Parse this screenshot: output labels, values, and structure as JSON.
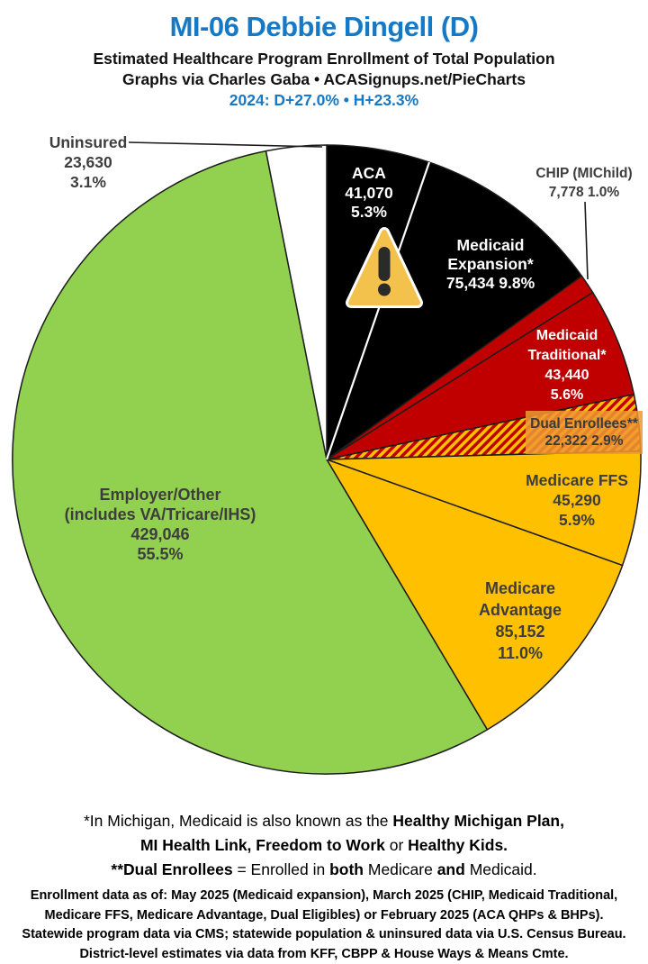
{
  "header": {
    "title": "MI-06 Debbie Dingell (D)",
    "subtitle1": "Estimated Healthcare Program Enrollment of Total Population",
    "subtitle2": "Graphs via Charles Gaba   •   ACASignups.net/PieCharts",
    "partisan_lean": "2024: D+27.0%  •  H+23.3%",
    "accent_blue": "#1679C5"
  },
  "chart_data": {
    "type": "pie",
    "title": "Estimated Healthcare Program Enrollment of Total Population",
    "units": "people",
    "start_angle_deg": 0,
    "direction": "clockwise",
    "hatch": {
      "bg": "#FFC000",
      "stripe": "#C00000"
    },
    "slices": [
      {
        "id": "aca",
        "label": "ACA",
        "value": 41070,
        "pct": 5.3,
        "fill": "#000000"
      },
      {
        "id": "medicaid-expansion",
        "label": "Medicaid Expansion*",
        "value": 75434,
        "pct": 9.8,
        "fill": "#000000"
      },
      {
        "id": "chip",
        "label": "CHIP (MIChild)",
        "value": 7778,
        "pct": 1.0,
        "fill": "#C00000"
      },
      {
        "id": "medicaid-traditional",
        "label": "Medicaid Traditional*",
        "value": 43440,
        "pct": 5.6,
        "fill": "#C00000"
      },
      {
        "id": "dual-enrollees",
        "label": "Dual Enrollees**",
        "value": 22322,
        "pct": 2.9,
        "fill": "hatch"
      },
      {
        "id": "medicare-ffs",
        "label": "Medicare FFS",
        "value": 45290,
        "pct": 5.9,
        "fill": "#FFC000"
      },
      {
        "id": "medicare-advantage",
        "label": "Medicare Advantage",
        "value": 85152,
        "pct": 11.0,
        "fill": "#FFC000"
      },
      {
        "id": "employer-other",
        "label": "Employer/Other (includes VA/Tricare/IHS)",
        "value": 429046,
        "pct": 55.5,
        "fill": "#92D050"
      },
      {
        "id": "uninsured",
        "label": "Uninsured",
        "value": 23630,
        "pct": 3.1,
        "fill": "#FFFFFF"
      }
    ]
  },
  "slice_labels": {
    "aca": [
      "ACA",
      "41,070",
      "5.3%"
    ],
    "expansion": [
      "Medicaid",
      "Expansion*",
      "75,434 9.8%"
    ],
    "chip": [
      "CHIP (MIChild)",
      "7,778 1.0%"
    ],
    "traditional": [
      "Medicaid",
      "Traditional*",
      "43,440",
      "5.6%"
    ],
    "dual": [
      "Dual Enrollees**",
      "22,322 2.9%"
    ],
    "ffs": [
      "Medicare FFS",
      "45,290",
      "5.9%"
    ],
    "advantage": [
      "Medicare",
      "Advantage",
      "85,152",
      "11.0%"
    ],
    "employer": [
      "Employer/Other",
      "(includes VA/Tricare/IHS)",
      "429,046",
      "55.5%"
    ],
    "uninsured": [
      "Uninsured",
      "23,630",
      "3.1%"
    ]
  },
  "icons": {
    "warning_triangle": {
      "name": "warning-triangle-icon",
      "fill": "#F2C24D",
      "mark": "#2A2A2A",
      "border": "#FFFFFF"
    }
  },
  "footnote1": {
    "lines": [
      [
        {
          "t": "*In Michigan, Medicaid is also known as the ",
          "b": false
        },
        {
          "t": "Healthy Michigan Plan,",
          "b": true
        }
      ],
      [
        {
          "t": "MI Health Link, Freedom to Work",
          "b": true
        },
        {
          "t": " or ",
          "b": false
        },
        {
          "t": "Healthy Kids.",
          "b": true
        }
      ],
      [
        {
          "t": "**Dual Enrollees",
          "b": true
        },
        {
          "t": " = Enrolled in ",
          "b": false
        },
        {
          "t": "both",
          "b": true
        },
        {
          "t": " Medicare ",
          "b": false
        },
        {
          "t": "and",
          "b": true
        },
        {
          "t": " Medicaid.",
          "b": false
        }
      ]
    ]
  },
  "footnote2": {
    "lines": [
      "Enrollment data as of: May 2025 (Medicaid expansion), March 2025 (CHIP, Medicaid Traditional,",
      "Medicare FFS, Medicare Advantage, Dual Eligibles) or February 2025 (ACA QHPs & BHPs).",
      "Statewide program data via CMS; statewide population & uninsured data via U.S. Census Bureau.",
      "District-level estimates via data from KFF, CBPP & House Ways & Means Cmte."
    ]
  }
}
